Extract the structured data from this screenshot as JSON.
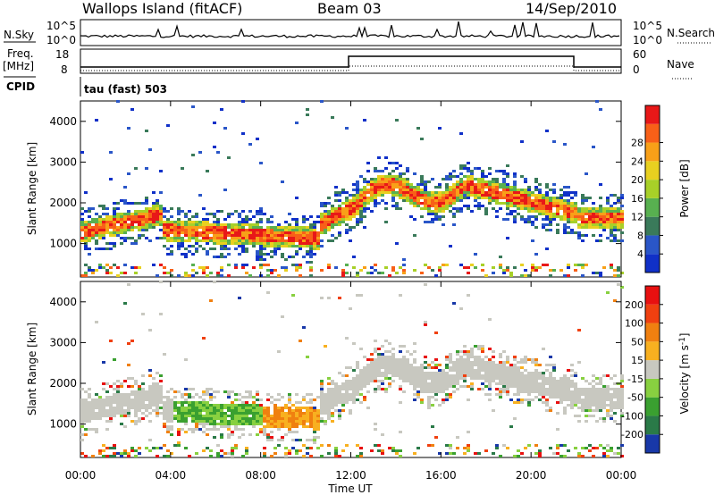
{
  "header": {
    "station": "Wallops Island (fitACF)",
    "beam": "Beam 03",
    "date": "14/Sep/2010"
  },
  "strip_panels": {
    "nsky_label": "N.Sky",
    "nsearch_label": "N.Search",
    "noise_ticks": [
      "10^5",
      "10^0"
    ],
    "freq_label": "Freq.",
    "freq_unit": "[MHz]",
    "freq_ticks": [
      "18",
      "8"
    ],
    "nave_label": "Nave",
    "nave_ticks": [
      "60",
      "0"
    ],
    "cpid_label": "CPID",
    "cpid_value": "tau (fast) 503"
  },
  "chart_data": [
    {
      "type": "heatmap",
      "name": "power",
      "ylabel": "Slant Range [km]",
      "ylim": [
        180,
        4500
      ],
      "yticks": [
        "1000",
        "2000",
        "3000",
        "4000"
      ],
      "colorbar_label": "Power [dB]",
      "colorbar_ticks": [
        "4",
        "8",
        "12",
        "16",
        "20",
        "24",
        "28"
      ],
      "colors": [
        "#1030c8",
        "#2a56c8",
        "#3a7a5a",
        "#58b050",
        "#a8d028",
        "#e8d020",
        "#f8a018",
        "#f86018",
        "#e81818"
      ],
      "grid": false
    },
    {
      "type": "heatmap",
      "name": "velocity",
      "ylabel": "Slant Range [km]",
      "ylim": [
        180,
        4500
      ],
      "yticks": [
        "1000",
        "2000",
        "3000",
        "4000"
      ],
      "colorbar_label": "Velocity [m s",
      "colorbar_unit_sup": "-1",
      "colorbar_ticks": [
        "200",
        "100",
        "50",
        "15",
        "-15",
        "-50",
        "-100",
        "-200"
      ],
      "colors": [
        "#1838a8",
        "#2a7a48",
        "#3aa030",
        "#88d040",
        "#c8c8c0",
        "#f8b020",
        "#f08010",
        "#f04010",
        "#e81010"
      ],
      "grid": false
    }
  ],
  "x_axis": {
    "label": "Time UT",
    "ticks": [
      "00:00",
      "04:00",
      "08:00",
      "12:00",
      "16:00",
      "20:00",
      "00:00"
    ]
  }
}
